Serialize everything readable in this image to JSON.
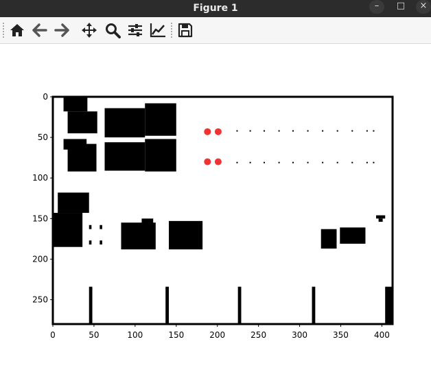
{
  "window": {
    "title": "Figure 1",
    "controls": {
      "minimize": "–",
      "maximize": "□",
      "close": "×"
    }
  },
  "toolbar": {
    "buttons": [
      {
        "name": "home",
        "icon": "home-icon",
        "tooltip": "Reset original view"
      },
      {
        "name": "back",
        "icon": "arrow-left-icon",
        "tooltip": "Back to previous view"
      },
      {
        "name": "forward",
        "icon": "arrow-right-icon",
        "tooltip": "Forward to next view"
      },
      {
        "name": "pan",
        "icon": "move-icon",
        "tooltip": "Pan axes"
      },
      {
        "name": "zoom",
        "icon": "zoom-icon",
        "tooltip": "Zoom to rectangle"
      },
      {
        "name": "configure",
        "icon": "sliders-icon",
        "tooltip": "Configure subplots"
      },
      {
        "name": "edit",
        "icon": "chart-line-icon",
        "tooltip": "Edit axis"
      },
      {
        "name": "save",
        "icon": "save-icon",
        "tooltip": "Save the figure"
      }
    ]
  },
  "colors": {
    "obstacle": "#000000",
    "marker": "#ee0000",
    "background": "#ffffff",
    "titlebar": "#2c2c2c"
  },
  "chart_data": {
    "type": "heatmap",
    "description_kind": "occupancy-grid image (imshow)",
    "xlim": [
      0,
      413
    ],
    "ylim": [
      280,
      0
    ],
    "x_ticks": [
      0,
      50,
      100,
      150,
      200,
      250,
      300,
      350,
      400
    ],
    "y_ticks": [
      0,
      50,
      100,
      150,
      200,
      250
    ],
    "grid": false,
    "obstacles": [
      {
        "x0": 13,
        "x1": 42,
        "y0": 0,
        "y1": 18
      },
      {
        "x0": 18,
        "x1": 54,
        "y0": 18,
        "y1": 45
      },
      {
        "x0": 63,
        "x1": 112,
        "y0": 14,
        "y1": 50
      },
      {
        "x0": 112,
        "x1": 150,
        "y0": 8,
        "y1": 48
      },
      {
        "x0": 13,
        "x1": 41,
        "y0": 52,
        "y1": 65
      },
      {
        "x0": 18,
        "x1": 53,
        "y0": 58,
        "y1": 92
      },
      {
        "x0": 63,
        "x1": 112,
        "y0": 56,
        "y1": 91
      },
      {
        "x0": 112,
        "x1": 150,
        "y0": 52,
        "y1": 92
      },
      {
        "x0": 6,
        "x1": 44,
        "y0": 118,
        "y1": 143
      },
      {
        "x0": 0,
        "x1": 36,
        "y0": 143,
        "y1": 185
      },
      {
        "x0": 83,
        "x1": 125,
        "y0": 155,
        "y1": 188
      },
      {
        "x0": 108,
        "x1": 122,
        "y0": 150,
        "y1": 160
      },
      {
        "x0": 141,
        "x1": 182,
        "y0": 153,
        "y1": 188
      },
      {
        "x0": 326,
        "x1": 345,
        "y0": 163,
        "y1": 187
      },
      {
        "x0": 349,
        "x1": 380,
        "y0": 161,
        "y1": 181
      },
      {
        "x0": 393,
        "x1": 404,
        "y0": 146,
        "y1": 150
      },
      {
        "x0": 396,
        "x1": 401,
        "y0": 150,
        "y1": 154
      },
      {
        "x0": 44,
        "x1": 48,
        "y0": 234,
        "y1": 280
      },
      {
        "x0": 137,
        "x1": 141,
        "y0": 234,
        "y1": 280
      },
      {
        "x0": 225,
        "x1": 229,
        "y0": 234,
        "y1": 280
      },
      {
        "x0": 315,
        "x1": 319,
        "y0": 234,
        "y1": 280
      },
      {
        "x0": 404,
        "x1": 413,
        "y0": 234,
        "y1": 280
      },
      {
        "x0": 44,
        "x1": 47,
        "y0": 158,
        "y1": 163
      },
      {
        "x0": 57,
        "x1": 60,
        "y0": 158,
        "y1": 163
      },
      {
        "x0": 44,
        "x1": 47,
        "y0": 177,
        "y1": 182
      },
      {
        "x0": 57,
        "x1": 60,
        "y0": 177,
        "y1": 182
      }
    ],
    "markers": [
      {
        "x": 188,
        "y": 43
      },
      {
        "x": 201,
        "y": 43
      },
      {
        "x": 188,
        "y": 80
      },
      {
        "x": 201,
        "y": 80
      }
    ],
    "dots_y": [
      42,
      81
    ],
    "dots_x": [
      224,
      240,
      257,
      275,
      292,
      310,
      328,
      346,
      364,
      382,
      390
    ]
  }
}
